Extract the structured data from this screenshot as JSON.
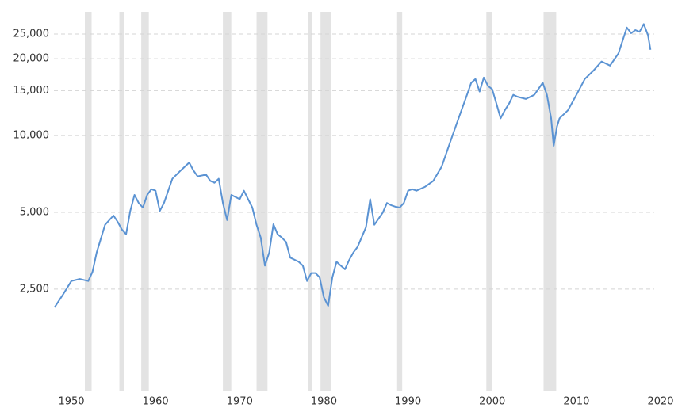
{
  "chart_data": {
    "type": "line",
    "log_scale": true,
    "grid": true,
    "color": "#5b93d3",
    "shade_color": "#e3e3e3",
    "x": [
      1948,
      1949,
      1950,
      1951,
      1952,
      1952.5,
      1953,
      1954,
      1955,
      1955.5,
      1956,
      1956.5,
      1957,
      1957.5,
      1958,
      1958.5,
      1959,
      1959.5,
      1960,
      1960.5,
      1961,
      1962,
      1963,
      1964,
      1964.5,
      1965,
      1966,
      1966.5,
      1967,
      1967.5,
      1968,
      1968.5,
      1969,
      1970,
      1970.5,
      1971,
      1971.5,
      1972,
      1972.5,
      1973,
      1973.5,
      1974,
      1974.5,
      1975,
      1975.5,
      1976,
      1977,
      1977.5,
      1978,
      1978.5,
      1979,
      1979.5,
      1980,
      1980.5,
      1981,
      1981.5,
      1982,
      1982.5,
      1983,
      1983.5,
      1984,
      1985,
      1985.5,
      1986,
      1987,
      1987.5,
      1988,
      1988.5,
      1989,
      1989.5,
      1990,
      1990.5,
      1991,
      1992,
      1993,
      1994,
      1995,
      1996,
      1997,
      1997.5,
      1998,
      1998.5,
      1999,
      1999.5,
      2000,
      2000.5,
      2001,
      2001.5,
      2002,
      2002.5,
      2003,
      2004,
      2005,
      2006,
      2006.5,
      2007,
      2007.3,
      2007.7,
      2008,
      2009,
      2010,
      2011,
      2012,
      2013,
      2014,
      2015,
      2016,
      2016.5,
      2017,
      2017.5,
      2018,
      2018.5,
      2018.8
    ],
    "values": [
      2120,
      2380,
      2690,
      2740,
      2690,
      2920,
      3480,
      4470,
      4860,
      4590,
      4280,
      4100,
      5070,
      5850,
      5440,
      5220,
      5850,
      6160,
      6080,
      5060,
      5440,
      6770,
      7300,
      7840,
      7300,
      6920,
      7030,
      6640,
      6530,
      6770,
      5440,
      4660,
      5850,
      5630,
      6080,
      5630,
      5220,
      4470,
      3980,
      3090,
      3480,
      4490,
      4100,
      3980,
      3830,
      3320,
      3200,
      3090,
      2690,
      2890,
      2890,
      2780,
      2320,
      2150,
      2780,
      3200,
      3090,
      2990,
      3250,
      3480,
      3660,
      4370,
      5630,
      4470,
      4990,
      5440,
      5330,
      5260,
      5220,
      5440,
      6080,
      6160,
      6080,
      6290,
      6640,
      7560,
      9430,
      11690,
      14440,
      16100,
      16660,
      14870,
      16880,
      15650,
      15200,
      13350,
      11690,
      12560,
      13350,
      14440,
      14200,
      13920,
      14440,
      16100,
      14440,
      11690,
      9110,
      10850,
      11690,
      12560,
      14440,
      16660,
      17940,
      19520,
      18800,
      21000,
      26500,
      25200,
      25900,
      25500,
      27350,
      24800,
      21700
    ],
    "shaded_ranges": [
      [
        1951.6,
        1952.4
      ],
      [
        1955.7,
        1956.3
      ],
      [
        1958.3,
        1959.2
      ],
      [
        1968.0,
        1969.0
      ],
      [
        1972.0,
        1973.3
      ],
      [
        1978.1,
        1978.6
      ],
      [
        1979.6,
        1980.9
      ],
      [
        1988.7,
        1989.3
      ],
      [
        1999.3,
        2000.0
      ],
      [
        2006.1,
        2007.6
      ]
    ],
    "xlim": [
      1948,
      2020
    ],
    "xticks": [
      1950,
      1960,
      1970,
      1980,
      1990,
      2000,
      2010,
      2020
    ],
    "ylim": [
      1000,
      30000
    ],
    "yticks": [
      {
        "value": 2500,
        "label": "2,500"
      },
      {
        "value": 5000,
        "label": "5,000"
      },
      {
        "value": 10000,
        "label": "10,000"
      },
      {
        "value": 15000,
        "label": "15,000"
      },
      {
        "value": 20000,
        "label": "20,000"
      },
      {
        "value": 25000,
        "label": "25,000"
      }
    ]
  }
}
